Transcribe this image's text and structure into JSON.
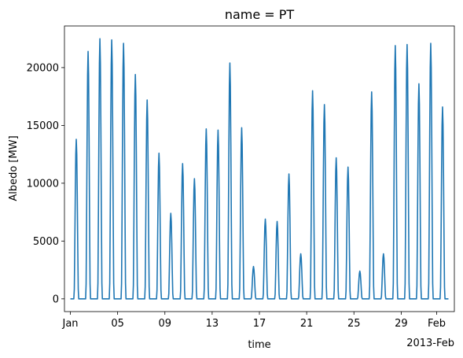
{
  "chart_data": {
    "type": "line",
    "title": "name = PT",
    "xlabel": "time",
    "ylabel": "Albedo [MW]",
    "x_offset_label": "2013-Feb",
    "xlim": [
      "2012-12-31T12:00",
      "2013-02-02T12:00"
    ],
    "ylim": [
      -1100,
      23600
    ],
    "grid": false,
    "x_ticks": [
      {
        "date": "2013-01-01",
        "label": "Jan"
      },
      {
        "date": "2013-01-05",
        "label": "05"
      },
      {
        "date": "2013-01-09",
        "label": "09"
      },
      {
        "date": "2013-01-13",
        "label": "13"
      },
      {
        "date": "2013-01-17",
        "label": "17"
      },
      {
        "date": "2013-01-21",
        "label": "21"
      },
      {
        "date": "2013-01-25",
        "label": "25"
      },
      {
        "date": "2013-01-29",
        "label": "29"
      },
      {
        "date": "2013-02-01",
        "label": "Feb"
      }
    ],
    "y_ticks": [
      {
        "value": 0,
        "label": "0"
      },
      {
        "value": 5000,
        "label": "5000"
      },
      {
        "value": 10000,
        "label": "10000"
      },
      {
        "value": 15000,
        "label": "15000"
      },
      {
        "value": 20000,
        "label": "20000"
      }
    ],
    "series": [
      {
        "color": "#1f77b4",
        "daily_peaks": [
          {
            "date": "2013-01-01",
            "peak": 13800
          },
          {
            "date": "2013-01-02",
            "peak": 21400
          },
          {
            "date": "2013-01-03",
            "peak": 22500
          },
          {
            "date": "2013-01-04",
            "peak": 22400
          },
          {
            "date": "2013-01-05",
            "peak": 22100
          },
          {
            "date": "2013-01-06",
            "peak": 19400
          },
          {
            "date": "2013-01-07",
            "peak": 17200
          },
          {
            "date": "2013-01-08",
            "peak": 12600
          },
          {
            "date": "2013-01-09",
            "peak": 7400
          },
          {
            "date": "2013-01-10",
            "peak": 11700
          },
          {
            "date": "2013-01-11",
            "peak": 10400
          },
          {
            "date": "2013-01-12",
            "peak": 14700
          },
          {
            "date": "2013-01-13",
            "peak": 14600
          },
          {
            "date": "2013-01-14",
            "peak": 20400
          },
          {
            "date": "2013-01-15",
            "peak": 14800
          },
          {
            "date": "2013-01-16",
            "peak": 2800
          },
          {
            "date": "2013-01-17",
            "peak": 6900
          },
          {
            "date": "2013-01-18",
            "peak": 6700
          },
          {
            "date": "2013-01-19",
            "peak": 10800
          },
          {
            "date": "2013-01-20",
            "peak": 3900
          },
          {
            "date": "2013-01-21",
            "peak": 18000
          },
          {
            "date": "2013-01-22",
            "peak": 16800
          },
          {
            "date": "2013-01-23",
            "peak": 12200
          },
          {
            "date": "2013-01-24",
            "peak": 11400
          },
          {
            "date": "2013-01-25",
            "peak": 2400
          },
          {
            "date": "2013-01-26",
            "peak": 17900
          },
          {
            "date": "2013-01-27",
            "peak": 3900
          },
          {
            "date": "2013-01-28",
            "peak": 21900
          },
          {
            "date": "2013-01-29",
            "peak": 22000
          },
          {
            "date": "2013-01-30",
            "peak": 18600
          },
          {
            "date": "2013-01-31",
            "peak": 22100
          },
          {
            "date": "2013-02-01",
            "peak": 16600
          }
        ]
      }
    ]
  }
}
